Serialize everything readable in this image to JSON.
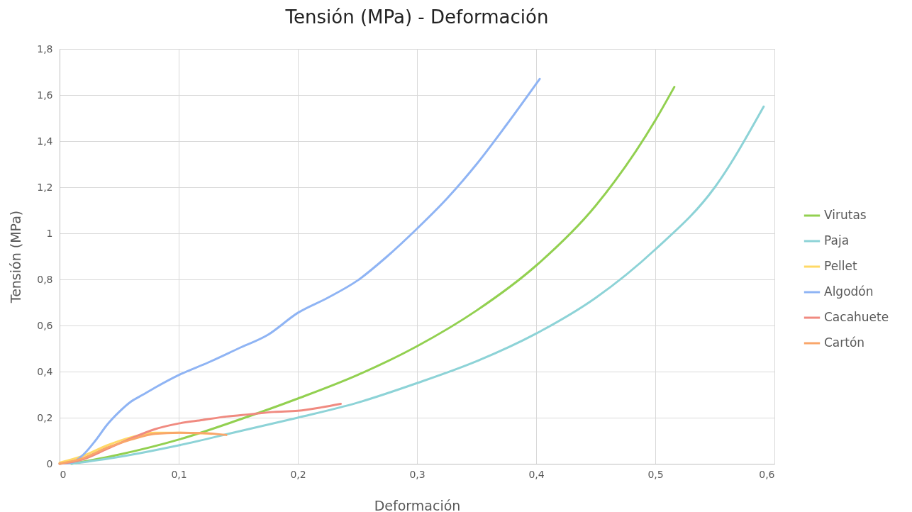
{
  "chart_data": {
    "type": "line",
    "title": "Tensión (MPa) - Deformación",
    "xlabel": "Deformación",
    "ylabel": "Tensión (MPa)",
    "xlim": [
      0,
      0.6
    ],
    "ylim": [
      0,
      1.8
    ],
    "xticks": [
      0,
      {
        "value": 0.1,
        "label": "0,1"
      },
      {
        "value": 0.2,
        "label": "0,2"
      },
      {
        "value": 0.3,
        "label": "0,3"
      },
      {
        "value": 0.4,
        "label": "0,4"
      },
      {
        "value": 0.5,
        "label": "0,5"
      },
      {
        "value": 0.6,
        "label": "0,6"
      }
    ],
    "yticks": [
      0,
      {
        "value": 0.2,
        "label": "0,2"
      },
      {
        "value": 0.4,
        "label": "0,4"
      },
      {
        "value": 0.6,
        "label": "0,6"
      },
      {
        "value": 0.8,
        "label": "0,8"
      },
      1,
      {
        "value": 1.2,
        "label": "1,2"
      },
      {
        "value": 1.4,
        "label": "1,4"
      },
      {
        "value": 1.6,
        "label": "1,6"
      },
      {
        "value": 1.8,
        "label": "1,8"
      }
    ],
    "grid": true,
    "legend": "right",
    "marker": "none",
    "line_style": "solid",
    "series": [
      {
        "name": "Virutas",
        "color": "#92d050",
        "x": [
          0.01,
          0.05,
          0.1,
          0.15,
          0.2,
          0.25,
          0.3,
          0.35,
          0.4,
          0.45,
          0.5,
          0.516
        ],
        "values": [
          0,
          0.04,
          0.105,
          0.19,
          0.283,
          0.385,
          0.51,
          0.665,
          0.86,
          1.12,
          1.49,
          1.635
        ]
      },
      {
        "name": "Paja",
        "color": "#8dd3d7",
        "x": [
          0.01,
          0.05,
          0.1,
          0.15,
          0.2,
          0.25,
          0.3,
          0.35,
          0.4,
          0.45,
          0.5,
          0.55,
          0.591
        ],
        "values": [
          0,
          0.03,
          0.08,
          0.14,
          0.2,
          0.265,
          0.35,
          0.445,
          0.565,
          0.72,
          0.93,
          1.2,
          1.55
        ]
      },
      {
        "name": "Pellet",
        "color": "#ffd966",
        "x": [
          0,
          0.02,
          0.04,
          0.06,
          0.08,
          0.1,
          0.12,
          0.128
        ],
        "values": [
          0.005,
          0.035,
          0.08,
          0.115,
          0.135,
          0.135,
          0.132,
          0.13
        ]
      },
      {
        "name": "Algodón",
        "color": "#8fb4f4",
        "x": [
          0,
          0.01,
          0.02,
          0.03,
          0.04,
          0.05,
          0.06,
          0.07,
          0.08,
          0.1,
          0.125,
          0.15,
          0.175,
          0.2,
          0.225,
          0.25,
          0.275,
          0.3,
          0.325,
          0.35,
          0.375,
          0.403
        ],
        "values": [
          0,
          0.005,
          0.04,
          0.1,
          0.17,
          0.225,
          0.27,
          0.3,
          0.33,
          0.385,
          0.44,
          0.5,
          0.56,
          0.655,
          0.72,
          0.795,
          0.9,
          1.02,
          1.15,
          1.3,
          1.47,
          1.67
        ]
      },
      {
        "name": "Cacahuete",
        "color": "#f08a80",
        "x": [
          0,
          0.02,
          0.04,
          0.06,
          0.08,
          0.1,
          0.12,
          0.14,
          0.16,
          0.18,
          0.2,
          0.22,
          0.236
        ],
        "values": [
          0,
          0.02,
          0.065,
          0.11,
          0.15,
          0.175,
          0.19,
          0.205,
          0.215,
          0.225,
          0.23,
          0.245,
          0.26
        ]
      },
      {
        "name": "Cartón",
        "color": "#f9a66a",
        "x": [
          0,
          0.02,
          0.04,
          0.06,
          0.08,
          0.1,
          0.12,
          0.14
        ],
        "values": [
          0,
          0.025,
          0.07,
          0.105,
          0.13,
          0.135,
          0.133,
          0.125
        ]
      }
    ]
  }
}
